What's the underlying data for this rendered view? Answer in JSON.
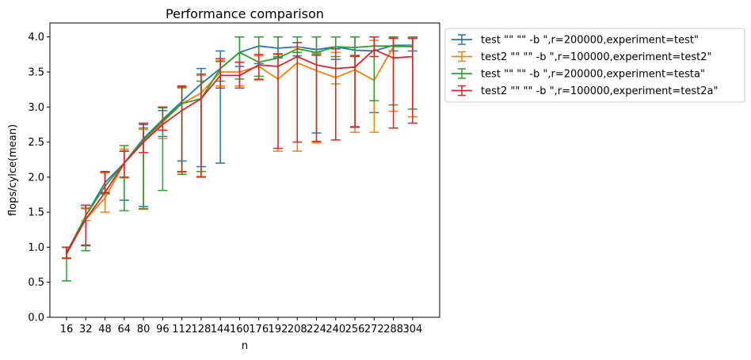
{
  "chart_data": {
    "type": "line",
    "title": "Performance comparison",
    "xlabel": "n",
    "ylabel": "flops/cylce(mean)",
    "ylim": [
      0,
      4.2
    ],
    "yticks": [
      0.0,
      0.5,
      1.0,
      1.5,
      2.0,
      2.5,
      3.0,
      3.5,
      4.0
    ],
    "ytick_labels": [
      "0.0",
      "0.5",
      "1.0",
      "1.5",
      "2.0",
      "2.5",
      "3.0",
      "3.5",
      "4.0"
    ],
    "x": [
      "16",
      "32",
      "48",
      "64",
      "80",
      "96",
      "112",
      "128",
      "144",
      "160",
      "176",
      "192",
      "208",
      "224",
      "240",
      "256",
      "272",
      "288",
      "304"
    ],
    "grid": false,
    "legend_placement": "outside-right-top",
    "series": [
      {
        "name": "test \"\"  \"\" -b \",r=200000,experiment=test\"",
        "color": "#1f77b4",
        "values": [
          0.92,
          1.45,
          1.92,
          2.2,
          2.55,
          2.82,
          3.08,
          3.33,
          3.55,
          3.78,
          3.87,
          3.84,
          3.86,
          3.82,
          3.86,
          3.81,
          3.8,
          3.88,
          3.88
        ],
        "err_low": [
          0.85,
          1.02,
          1.76,
          1.67,
          1.58,
          2.58,
          2.23,
          2.15,
          2.2,
          3.58,
          3.62,
          3.7,
          3.73,
          2.63,
          3.68,
          2.71,
          2.92,
          3.8,
          3.8
        ],
        "err_high": [
          1.0,
          1.6,
          2.07,
          2.37,
          2.75,
          2.95,
          3.28,
          3.55,
          3.8,
          4.0,
          4.0,
          4.0,
          4.0,
          4.0,
          4.0,
          4.0,
          4.0,
          4.0,
          4.0
        ]
      },
      {
        "name": "test2 \"\"  \"\" -b \",r=100000,experiment=test2\"",
        "color": "#ff7f0e",
        "values": [
          0.9,
          1.4,
          1.7,
          2.2,
          2.5,
          2.78,
          3.05,
          3.2,
          3.5,
          3.5,
          3.58,
          3.4,
          3.63,
          3.52,
          3.42,
          3.53,
          3.38,
          3.86,
          3.87
        ],
        "err_low": [
          0.85,
          1.38,
          1.5,
          1.99,
          1.54,
          2.55,
          2.07,
          2.01,
          3.3,
          3.3,
          3.4,
          2.37,
          2.37,
          2.49,
          3.33,
          2.64,
          2.64,
          2.94,
          2.86
        ],
        "err_high": [
          1.0,
          1.57,
          2.06,
          2.4,
          2.68,
          3.0,
          3.27,
          3.45,
          3.66,
          3.64,
          3.73,
          3.75,
          3.85,
          3.78,
          3.78,
          3.74,
          3.95,
          3.98,
          3.98
        ]
      },
      {
        "name": "test \"\"  \"\" -b \",r=200000,experiment=testa\"",
        "color": "#2ca02c",
        "values": [
          0.9,
          1.45,
          1.87,
          2.2,
          2.53,
          2.8,
          3.05,
          3.12,
          3.55,
          3.78,
          3.64,
          3.7,
          3.83,
          3.78,
          3.86,
          3.85,
          3.87,
          3.87,
          3.86
        ],
        "err_low": [
          0.52,
          0.95,
          1.77,
          1.52,
          1.55,
          1.81,
          2.04,
          2.08,
          3.37,
          3.4,
          3.44,
          3.72,
          3.78,
          3.76,
          3.72,
          3.72,
          3.09,
          3.03,
          2.97
        ],
        "err_high": [
          1.0,
          1.55,
          2.07,
          2.45,
          2.7,
          2.99,
          3.29,
          3.37,
          3.65,
          4.0,
          4.0,
          4.0,
          4.0,
          4.0,
          4.0,
          4.0,
          4.0,
          4.0,
          4.0
        ]
      },
      {
        "name": "test2 \"\"  \"\" -b \",r=100000,experiment=test2a\"",
        "color": "#d62728",
        "values": [
          0.92,
          1.4,
          1.78,
          2.2,
          2.5,
          2.75,
          2.95,
          3.12,
          3.45,
          3.45,
          3.6,
          3.58,
          3.72,
          3.6,
          3.55,
          3.57,
          3.82,
          3.7,
          3.72
        ],
        "err_low": [
          0.84,
          1.03,
          1.78,
          2.0,
          2.35,
          2.67,
          2.08,
          2.0,
          3.27,
          3.27,
          3.39,
          2.41,
          2.5,
          2.51,
          2.53,
          2.72,
          3.72,
          2.7,
          2.77
        ],
        "err_high": [
          1.0,
          1.6,
          2.08,
          2.37,
          2.77,
          3.0,
          3.3,
          3.47,
          3.69,
          3.64,
          3.75,
          3.76,
          3.92,
          3.74,
          3.83,
          3.73,
          4.0,
          3.98,
          3.98
        ]
      }
    ]
  }
}
